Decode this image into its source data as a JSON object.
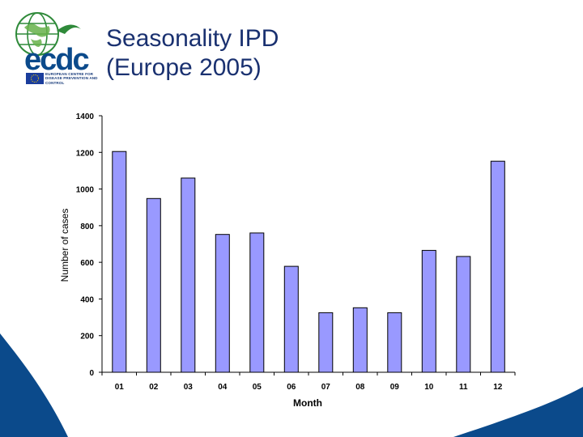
{
  "slide": {
    "title_line1": "Seasonality IPD",
    "title_line2": "(Europe 2005)"
  },
  "logo": {
    "wordmark": "ecdc",
    "org_line1": "EUROPEAN CENTRE FOR",
    "org_line2": "DISEASE PREVENTION AND",
    "org_line3": "CONTROL"
  },
  "colors": {
    "bar_fill": "#9999ff",
    "bar_stroke": "#000000",
    "title": "#1a3170",
    "brand_blue": "#0b4a8b",
    "brand_green": "#3a9a3a"
  },
  "chart_data": {
    "type": "bar",
    "title": "",
    "xlabel": "Month",
    "ylabel": "Number of cases",
    "categories": [
      "01",
      "02",
      "03",
      "04",
      "05",
      "06",
      "07",
      "08",
      "09",
      "10",
      "11",
      "12"
    ],
    "values": [
      1205,
      948,
      1060,
      752,
      760,
      578,
      325,
      352,
      325,
      665,
      632,
      1152
    ],
    "ylim": [
      0,
      1400
    ],
    "yticks": [
      0,
      200,
      400,
      600,
      800,
      1000,
      1200,
      1400
    ],
    "grid": false,
    "legend": "none"
  }
}
